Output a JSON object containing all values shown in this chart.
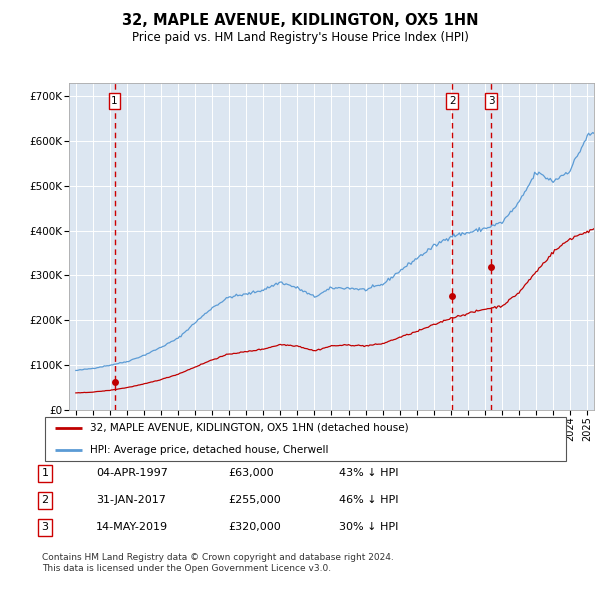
{
  "title": "32, MAPLE AVENUE, KIDLINGTON, OX5 1HN",
  "subtitle": "Price paid vs. HM Land Registry's House Price Index (HPI)",
  "footer": "Contains HM Land Registry data © Crown copyright and database right 2024.\nThis data is licensed under the Open Government Licence v3.0.",
  "legend_line1": "32, MAPLE AVENUE, KIDLINGTON, OX5 1HN (detached house)",
  "legend_line2": "HPI: Average price, detached house, Cherwell",
  "transactions": [
    {
      "num": 1,
      "date": "04-APR-1997",
      "price": 63000,
      "pct": "43% ↓ HPI",
      "x_year": 1997.27
    },
    {
      "num": 2,
      "date": "31-JAN-2017",
      "price": 255000,
      "pct": "46% ↓ HPI",
      "x_year": 2017.08
    },
    {
      "num": 3,
      "date": "14-MAY-2019",
      "price": 320000,
      "pct": "30% ↓ HPI",
      "x_year": 2019.37
    }
  ],
  "hpi_color": "#5b9bd5",
  "price_color": "#c00000",
  "vline_color": "#cc0000",
  "plot_bg": "#dce6f1",
  "ylim": [
    0,
    730000
  ],
  "xlim_start": 1994.6,
  "xlim_end": 2025.4,
  "hpi_year_values": {
    "1995": 88000,
    "1996": 93000,
    "1997": 100000,
    "1998": 108000,
    "1999": 122000,
    "2000": 140000,
    "2001": 160000,
    "2002": 195000,
    "2003": 228000,
    "2004": 252000,
    "2005": 258000,
    "2006": 268000,
    "2007": 285000,
    "2008": 272000,
    "2009": 252000,
    "2010": 272000,
    "2011": 272000,
    "2012": 268000,
    "2013": 280000,
    "2014": 310000,
    "2015": 338000,
    "2016": 365000,
    "2017": 388000,
    "2018": 395000,
    "2019": 405000,
    "2020": 418000,
    "2021": 462000,
    "2022": 530000,
    "2023": 510000,
    "2024": 535000,
    "2025": 610000
  },
  "price_year_values": {
    "1995": 38000,
    "1996": 40000,
    "1997": 44000,
    "1998": 50000,
    "1999": 58000,
    "2000": 68000,
    "2001": 80000,
    "2002": 96000,
    "2003": 112000,
    "2004": 125000,
    "2005": 130000,
    "2006": 136000,
    "2007": 146000,
    "2008": 143000,
    "2009": 132000,
    "2010": 143000,
    "2011": 145000,
    "2012": 143000,
    "2013": 148000,
    "2014": 162000,
    "2015": 175000,
    "2016": 190000,
    "2017": 205000,
    "2018": 215000,
    "2019": 225000,
    "2020": 232000,
    "2021": 262000,
    "2022": 308000,
    "2023": 352000,
    "2024": 382000,
    "2025": 398000
  }
}
